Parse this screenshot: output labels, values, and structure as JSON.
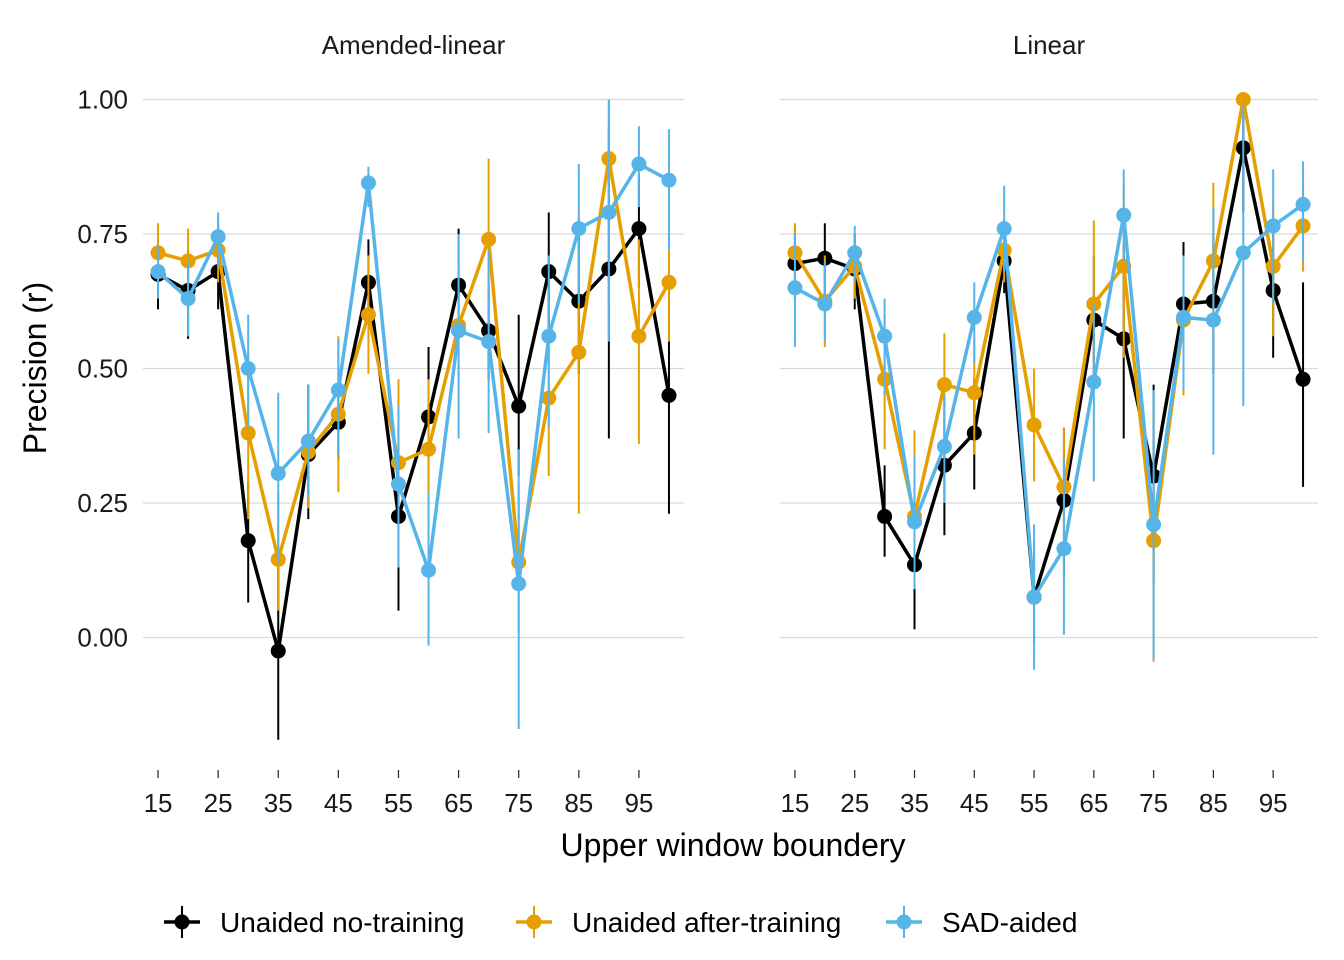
{
  "chart_data": {
    "type": "line",
    "xlabel": "Upper window boundery",
    "ylabel": "Precision (r)",
    "ylim": [
      -0.24,
      1.0
    ],
    "yticks": [
      "0.00",
      "0.25",
      "0.50",
      "0.75",
      "1.00"
    ],
    "ytick_values": [
      0,
      0.25,
      0.5,
      0.75,
      1.0
    ],
    "xticks": [
      15,
      25,
      35,
      45,
      55,
      65,
      75,
      85,
      95
    ],
    "xlim": [
      12.5,
      102.5
    ],
    "x": [
      15,
      20,
      25,
      30,
      35,
      40,
      45,
      50,
      55,
      60,
      65,
      70,
      75,
      80,
      85,
      90,
      95,
      100
    ],
    "grid": true,
    "legend_position": "bottom",
    "panels": [
      {
        "title": "Amended-linear",
        "series": [
          {
            "name": "Unaided no-training",
            "color": "#000000",
            "values": [
              0.675,
              0.645,
              0.68,
              0.18,
              -0.025,
              0.34,
              0.4,
              0.66,
              0.225,
              0.41,
              0.655,
              0.57,
              0.43,
              0.68,
              0.625,
              0.685,
              0.76,
              0.45
            ],
            "lower": [
              0.61,
              0.555,
              0.61,
              0.065,
              -0.19,
              0.22,
              0.33,
              0.585,
              0.05,
              0.27,
              0.58,
              0.48,
              0.3,
              0.56,
              0.49,
              0.37,
              0.65,
              0.23
            ],
            "upper": [
              0.73,
              0.72,
              0.74,
              0.29,
              0.15,
              0.47,
              0.47,
              0.74,
              0.4,
              0.54,
              0.76,
              0.66,
              0.6,
              0.79,
              0.76,
              0.95,
              0.86,
              0.66
            ]
          },
          {
            "name": "Unaided after-training",
            "color": "#E69F00",
            "values": [
              0.715,
              0.7,
              0.72,
              0.38,
              0.145,
              0.345,
              0.415,
              0.6,
              0.325,
              0.35,
              0.58,
              0.74,
              0.14,
              0.445,
              0.53,
              0.89,
              0.56,
              0.66
            ],
            "lower": [
              0.66,
              0.64,
              0.66,
              0.22,
              0.05,
              0.24,
              0.27,
              0.49,
              0.15,
              0.21,
              0.47,
              0.58,
              0.01,
              0.3,
              0.23,
              0.62,
              0.36,
              0.55
            ],
            "upper": [
              0.77,
              0.76,
              0.78,
              0.53,
              0.27,
              0.47,
              0.56,
              0.71,
              0.48,
              0.48,
              0.69,
              0.89,
              0.28,
              0.57,
              0.78,
              1.0,
              0.74,
              0.76
            ]
          },
          {
            "name": "SAD-aided",
            "color": "#56B4E9",
            "values": [
              0.68,
              0.63,
              0.745,
              0.5,
              0.305,
              0.365,
              0.46,
              0.845,
              0.285,
              0.125,
              0.57,
              0.55,
              0.1,
              0.56,
              0.76,
              0.79,
              0.88,
              0.85
            ],
            "lower": [
              0.63,
              0.56,
              0.69,
              0.39,
              0.14,
              0.26,
              0.34,
              0.8,
              0.13,
              -0.015,
              0.37,
              0.38,
              -0.17,
              0.39,
              0.62,
              0.55,
              0.8,
              0.72
            ],
            "upper": [
              0.73,
              0.7,
              0.79,
              0.6,
              0.455,
              0.47,
              0.555,
              0.875,
              0.43,
              0.27,
              0.75,
              0.72,
              0.35,
              0.71,
              0.88,
              1.0,
              0.95,
              0.945
            ]
          }
        ]
      },
      {
        "title": "Linear",
        "series": [
          {
            "name": "Unaided no-training",
            "color": "#000000",
            "values": [
              0.695,
              0.705,
              0.685,
              0.225,
              0.135,
              0.32,
              0.38,
              0.7,
              0.075,
              0.255,
              0.59,
              0.555,
              0.3,
              0.62,
              0.625,
              0.91,
              0.645,
              0.48
            ],
            "lower": [
              0.63,
              0.64,
              0.61,
              0.15,
              0.015,
              0.19,
              0.275,
              0.64,
              -0.01,
              0.11,
              0.47,
              0.37,
              0.1,
              0.5,
              0.49,
              0.79,
              0.52,
              0.28
            ],
            "upper": [
              0.76,
              0.77,
              0.75,
              0.32,
              0.27,
              0.45,
              0.48,
              0.765,
              0.18,
              0.39,
              0.71,
              0.73,
              0.47,
              0.735,
              0.75,
              0.97,
              0.76,
              0.66
            ]
          },
          {
            "name": "Unaided after-training",
            "color": "#E69F00",
            "values": [
              0.715,
              0.625,
              0.69,
              0.48,
              0.225,
              0.47,
              0.455,
              0.72,
              0.395,
              0.28,
              0.62,
              0.69,
              0.18,
              0.59,
              0.7,
              1.0,
              0.69,
              0.765
            ],
            "lower": [
              0.66,
              0.54,
              0.63,
              0.35,
              0.1,
              0.36,
              0.34,
              0.66,
              0.29,
              0.16,
              0.47,
              0.52,
              -0.045,
              0.45,
              0.56,
              0.98,
              0.56,
              0.68
            ],
            "upper": [
              0.77,
              0.71,
              0.75,
              0.6,
              0.385,
              0.565,
              0.56,
              0.78,
              0.5,
              0.39,
              0.775,
              0.84,
              0.25,
              0.7,
              0.845,
              1.0,
              0.81,
              0.85
            ]
          },
          {
            "name": "SAD-aided",
            "color": "#56B4E9",
            "values": [
              0.65,
              0.62,
              0.715,
              0.56,
              0.215,
              0.355,
              0.595,
              0.76,
              0.075,
              0.165,
              0.475,
              0.785,
              0.21,
              0.595,
              0.59,
              0.715,
              0.765,
              0.805
            ],
            "lower": [
              0.54,
              0.55,
              0.66,
              0.45,
              0.09,
              0.25,
              0.51,
              0.68,
              -0.06,
              0.005,
              0.29,
              0.7,
              -0.04,
              0.46,
              0.34,
              0.43,
              0.62,
              0.7
            ],
            "upper": [
              0.75,
              0.7,
              0.765,
              0.63,
              0.34,
              0.45,
              0.66,
              0.84,
              0.21,
              0.33,
              0.62,
              0.87,
              0.46,
              0.71,
              0.8,
              0.99,
              0.87,
              0.885
            ]
          }
        ]
      }
    ]
  }
}
